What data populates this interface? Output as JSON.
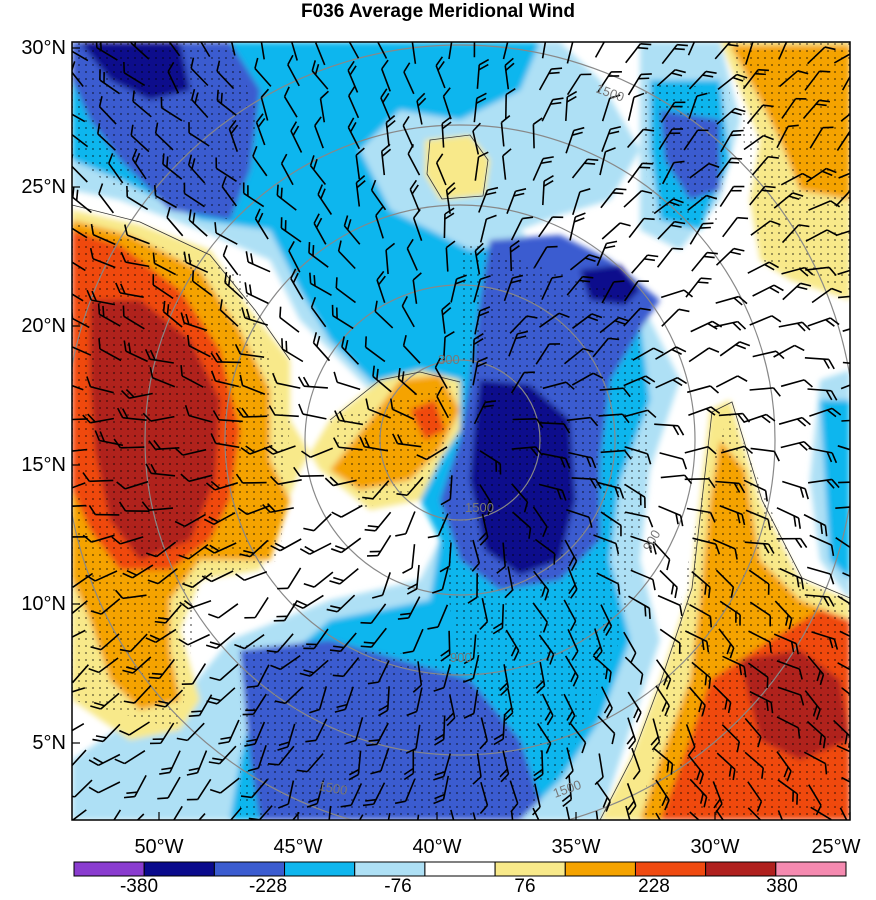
{
  "title": "F036 Average Meridional Wind",
  "lat_labels": [
    "30°N",
    "25°N",
    "20°N",
    "15°N",
    "10°N",
    "5°N"
  ],
  "lon_labels": [
    "50°W",
    "45°W",
    "40°W",
    "35°W",
    "30°W",
    "25°W"
  ],
  "contour_labels": [
    "300",
    "900",
    "1500"
  ],
  "colorbar": {
    "tick_labels": [
      "-380",
      "-228",
      "-76",
      "76",
      "228",
      "380"
    ],
    "colors": [
      "#8a3ccf",
      "#0a0a8c",
      "#3b5cd0",
      "#0fb6ee",
      "#aee0f5",
      "#ffffff",
      "#f8e98a",
      "#f5a300",
      "#f04a10",
      "#b0201e",
      "#f58ab0"
    ]
  },
  "palette": {
    "dark_blue": "#0a0a8c",
    "blue": "#3b5cd0",
    "light_blue": "#0fb6ee",
    "pale_blue": "#aee0f5",
    "white": "#ffffff",
    "pale_yellow": "#f8e98a",
    "orange": "#f5a300",
    "red_orange": "#f04a10",
    "dark_red": "#b0201e",
    "range_ring": "#888888"
  }
}
